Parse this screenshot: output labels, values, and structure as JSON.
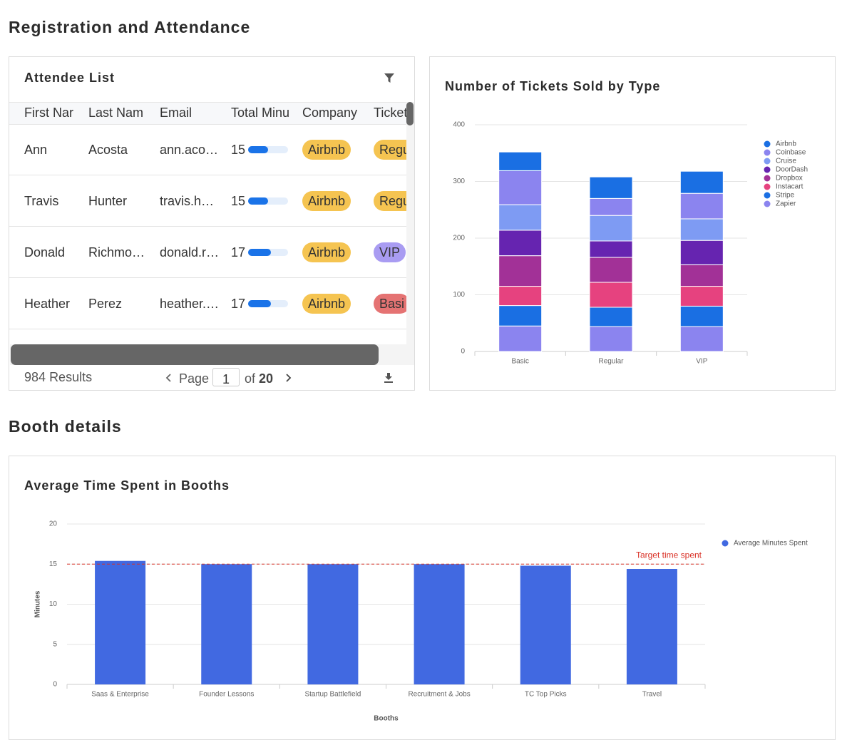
{
  "section_titles": [
    "Registration and Attendance",
    "Booth details"
  ],
  "attendee_list": {
    "title": "Attendee List",
    "columns": [
      "First Nar",
      "Last Nam",
      "Email",
      "Total Minu",
      "Company",
      "Ticket"
    ],
    "rows": [
      [
        "Ann",
        "Acosta",
        "ann.aco…",
        15,
        "Airbnb",
        "Regu"
      ],
      [
        "Travis",
        "Hunter",
        "travis.h…",
        15,
        "Airbnb",
        "Regu"
      ],
      [
        "Donald",
        "Richmo…",
        "donald.r…",
        17,
        "Airbnb",
        "VIP"
      ],
      [
        "Heather",
        "Perez",
        "heather.…",
        17,
        "Airbnb",
        "Basi"
      ]
    ],
    "company_color": "#f5c451",
    "ticket_colors": [
      "#f5c451",
      "#f5c451",
      "#a99cf2",
      "#e57373"
    ],
    "progress_color": "#1a73e8",
    "results": 984,
    "results_label": "Results",
    "page_label": "Page",
    "page": 1,
    "of_label": "of",
    "page_count": 20
  },
  "chart_data": [
    {
      "type": "bar",
      "stacked": true,
      "title": "Number of Tickets Sold by Type",
      "categories": [
        "Basic",
        "Regular",
        "VIP"
      ],
      "series": [
        {
          "name": "Airbnb",
          "color": "#1a6fe3",
          "values": [
            33,
            38,
            39
          ]
        },
        {
          "name": "Coinbase",
          "color": "#8b84ef",
          "values": [
            60,
            30,
            45
          ]
        },
        {
          "name": "Cruise",
          "color": "#7e9bf3",
          "values": [
            45,
            45,
            38
          ]
        },
        {
          "name": "DoorDash",
          "color": "#6624b0",
          "values": [
            45,
            29,
            43
          ]
        },
        {
          "name": "Dropbox",
          "color": "#a23197",
          "values": [
            54,
            44,
            38
          ]
        },
        {
          "name": "Instacart",
          "color": "#e6427f",
          "values": [
            34,
            44,
            35
          ]
        },
        {
          "name": "Stripe",
          "color": "#1a6fe3",
          "values": [
            36,
            34,
            36
          ]
        },
        {
          "name": "Zapier",
          "color": "#8b84ef",
          "values": [
            45,
            44,
            44
          ]
        }
      ],
      "ylim": [
        0,
        400
      ],
      "yticks": [
        0,
        100,
        200,
        300,
        400
      ],
      "grid": true,
      "legend": "right"
    },
    {
      "type": "bar",
      "title": "Average Time Spent in Booths",
      "x_label": "Booths",
      "y_label": "Minutes",
      "categories": [
        "Saas & Enterprise",
        "Founder Lessons",
        "Startup Battlefield",
        "Recruitment & Jobs",
        "TC Top Picks",
        "Travel"
      ],
      "series": [
        {
          "name": "Average Minutes Spent",
          "color": "#4169e1",
          "values": [
            15.4,
            15.0,
            15.0,
            15.0,
            14.8,
            14.4
          ]
        }
      ],
      "reference_line": {
        "value": 15,
        "label": "Target time spent",
        "color": "#d93025"
      },
      "ylim": [
        0,
        20
      ],
      "yticks": [
        0,
        5,
        10,
        15,
        20
      ],
      "grid": true,
      "legend": "right"
    }
  ]
}
